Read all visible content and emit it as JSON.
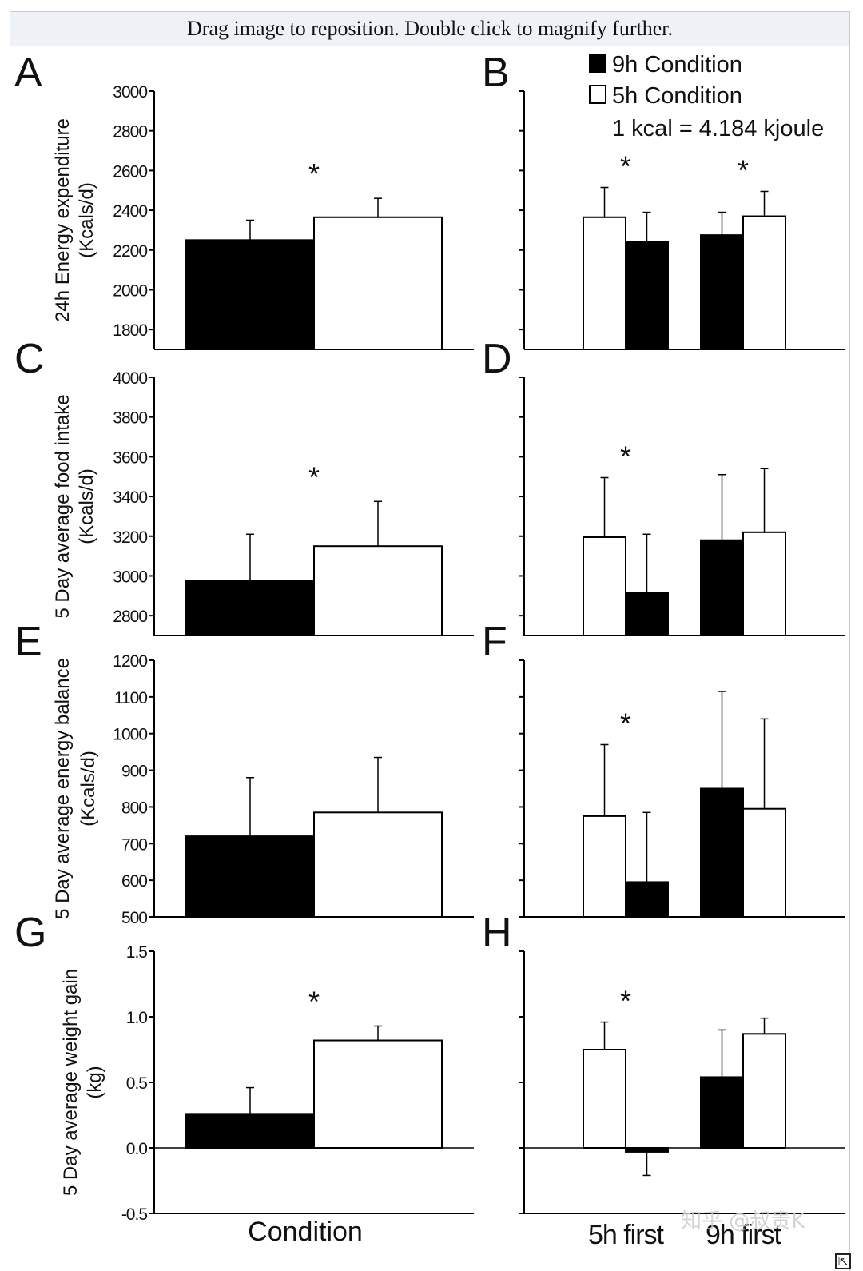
{
  "viewer": {
    "instruction": "Drag image to reposition. Double click to magnify further.",
    "resize_icon": "resize-corner-icon",
    "watermark": "知乎 @叔贵K"
  },
  "chart_data": [
    {
      "panel": "A",
      "type": "bar",
      "ylabel": "24h Energy expenditure",
      "ylabel2": "(Kcals/d)",
      "ylim": [
        1700,
        3000
      ],
      "yticks": [
        1800,
        2000,
        2200,
        2400,
        2600,
        2800,
        3000
      ],
      "bars": [
        {
          "series": "9h Condition",
          "value": 2250,
          "error": 100
        },
        {
          "series": "5h Condition",
          "value": 2365,
          "error": 95
        }
      ],
      "significance": [
        "*"
      ]
    },
    {
      "panel": "B",
      "type": "bar",
      "ylim": [
        1700,
        3000
      ],
      "groups": [
        {
          "label": "5h first",
          "bars": [
            {
              "series": "5h Condition",
              "value": 2365,
              "error": 150
            },
            {
              "series": "9h Condition",
              "value": 2240,
              "error": 150
            }
          ],
          "significance": "*"
        },
        {
          "label": "9h first",
          "bars": [
            {
              "series": "9h Condition",
              "value": 2275,
              "error": 115
            },
            {
              "series": "5h Condition",
              "value": 2370,
              "error": 125
            }
          ],
          "significance": "*"
        }
      ],
      "legend": [
        {
          "series": "9h Condition",
          "label": "9h Condition",
          "fill": "#000000"
        },
        {
          "series": "5h Condition",
          "label": "5h Condition",
          "fill": "#ffffff"
        }
      ],
      "note": "1 kcal = 4.184 kjoule"
    },
    {
      "panel": "C",
      "type": "bar",
      "ylabel": "5 Day average food intake",
      "ylabel2": "(Kcals/d)",
      "ylim": [
        2700,
        4000
      ],
      "yticks": [
        2800,
        3000,
        3200,
        3400,
        3600,
        3800,
        4000
      ],
      "bars": [
        {
          "series": "9h Condition",
          "value": 2975,
          "error": 235
        },
        {
          "series": "5h Condition",
          "value": 3150,
          "error": 225
        }
      ],
      "significance": [
        "*"
      ]
    },
    {
      "panel": "D",
      "type": "bar",
      "ylim": [
        2700,
        4000
      ],
      "groups": [
        {
          "label": "5h first",
          "bars": [
            {
              "series": "5h Condition",
              "value": 3195,
              "error": 300
            },
            {
              "series": "9h Condition",
              "value": 2915,
              "error": 295
            }
          ],
          "significance": "*"
        },
        {
          "label": "9h first",
          "bars": [
            {
              "series": "9h Condition",
              "value": 3180,
              "error": 330
            },
            {
              "series": "5h Condition",
              "value": 3220,
              "error": 320
            }
          ],
          "significance": ""
        }
      ]
    },
    {
      "panel": "E",
      "type": "bar",
      "ylabel": "5 Day average energy balance",
      "ylabel2": "(Kcals/d)",
      "ylim": [
        500,
        1200
      ],
      "yticks": [
        500,
        600,
        700,
        800,
        900,
        1000,
        1100,
        1200
      ],
      "bars": [
        {
          "series": "9h Condition",
          "value": 720,
          "error": 160
        },
        {
          "series": "5h Condition",
          "value": 785,
          "error": 150
        }
      ],
      "significance": []
    },
    {
      "panel": "F",
      "type": "bar",
      "ylim": [
        500,
        1200
      ],
      "groups": [
        {
          "label": "5h first",
          "bars": [
            {
              "series": "5h Condition",
              "value": 775,
              "error": 195
            },
            {
              "series": "9h Condition",
              "value": 595,
              "error": 190
            }
          ],
          "significance": "*"
        },
        {
          "label": "9h first",
          "bars": [
            {
              "series": "9h Condition",
              "value": 850,
              "error": 265
            },
            {
              "series": "5h Condition",
              "value": 795,
              "error": 245
            }
          ],
          "significance": ""
        }
      ]
    },
    {
      "panel": "G",
      "type": "bar",
      "ylabel": "5 Day average weight gain",
      "ylabel2": "(kg)",
      "xlabel": "Condition",
      "ylim": [
        -0.5,
        1.5
      ],
      "yticks": [
        -0.5,
        0.0,
        0.5,
        1.0,
        1.5
      ],
      "ytick_labels": [
        "-0.5",
        "0.0",
        "0.5",
        "1.0",
        "1.5"
      ],
      "bars": [
        {
          "series": "9h Condition",
          "value": 0.26,
          "error": 0.2
        },
        {
          "series": "5h Condition",
          "value": 0.82,
          "error": 0.11
        }
      ],
      "significance": [
        "*"
      ]
    },
    {
      "panel": "H",
      "type": "bar",
      "ylim": [
        -0.5,
        1.5
      ],
      "groups": [
        {
          "label": "5h first",
          "bars": [
            {
              "series": "5h Condition",
              "value": 0.75,
              "error": 0.21
            },
            {
              "series": "9h Condition",
              "value": -0.03,
              "error": 0.18
            }
          ],
          "significance": "*"
        },
        {
          "label": "9h first",
          "bars": [
            {
              "series": "9h Condition",
              "value": 0.54,
              "error": 0.36
            },
            {
              "series": "5h Condition",
              "value": 0.87,
              "error": 0.12
            }
          ],
          "significance": ""
        }
      ]
    }
  ]
}
